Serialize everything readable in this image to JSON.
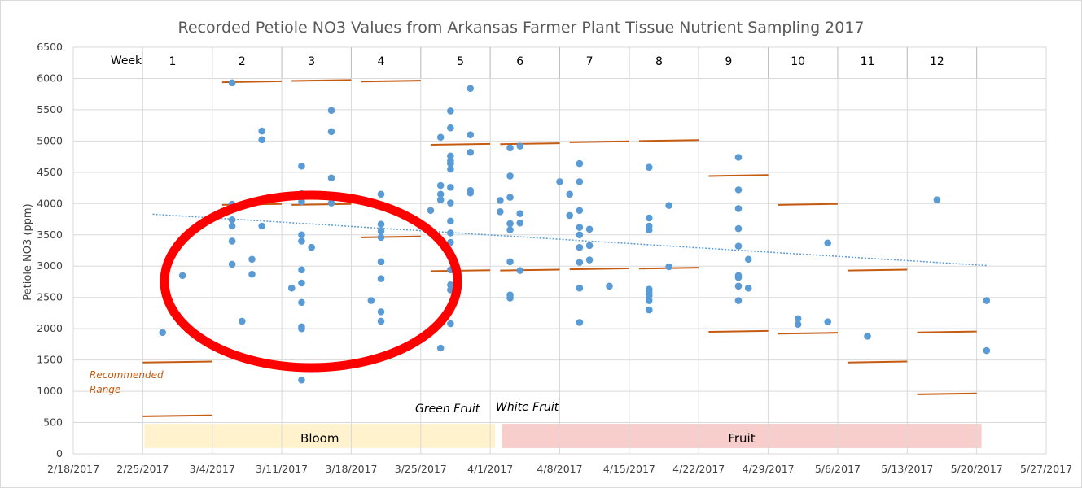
{
  "chart_data": {
    "type": "scatter",
    "title": "Recorded  Petiole NO3 Values from Arkansas Farmer Plant Tissue Nutrient Sampling 2017",
    "ylabel": "Petiole NO3  (ppm)",
    "xlabel": "",
    "ylim": [
      0,
      6500
    ],
    "xlim": [
      "2/18/2017",
      "5/27/2017"
    ],
    "y_ticks": [
      0,
      500,
      1000,
      1500,
      2000,
      2500,
      3000,
      3500,
      4000,
      4500,
      5000,
      5500,
      6000,
      6500
    ],
    "x_ticks": [
      "2/18/2017",
      "2/25/2017",
      "3/4/2017",
      "3/11/2017",
      "3/18/2017",
      "3/25/2017",
      "4/1/2017",
      "4/8/2017",
      "4/15/2017",
      "4/22/2017",
      "4/29/2017",
      "5/6/2017",
      "5/13/2017",
      "5/20/2017",
      "5/27/2017"
    ],
    "grid": true,
    "legend": "none",
    "week_header": "Week",
    "weeks": [
      {
        "label": "1",
        "x": "2/28/2017"
      },
      {
        "label": "2",
        "x": "3/7/2017"
      },
      {
        "label": "3",
        "x": "3/14/2017"
      },
      {
        "label": "4",
        "x": "3/21/2017"
      },
      {
        "label": "5",
        "x": "3/29/2017"
      },
      {
        "label": "6",
        "x": "4/4/2017"
      },
      {
        "label": "7",
        "x": "4/11/2017"
      },
      {
        "label": "8",
        "x": "4/18/2017"
      },
      {
        "label": "9",
        "x": "4/25/2017"
      },
      {
        "label": "10",
        "x": "5/2/2017"
      },
      {
        "label": "11",
        "x": "5/9/2017"
      },
      {
        "label": "12",
        "x": "5/16/2017"
      }
    ],
    "week_dividers": [
      "3/4/2017",
      "3/11/2017",
      "3/18/2017",
      "3/25/2017",
      "4/1/2017",
      "4/8/2017",
      "4/15/2017",
      "4/22/2017",
      "4/29/2017",
      "5/6/2017",
      "5/13/2017",
      "5/20/2017"
    ],
    "series": [
      {
        "points": [
          [
            "2/27/2017",
            1940
          ],
          [
            "3/1/2017",
            2850
          ],
          [
            "3/6/2017",
            5930
          ],
          [
            "3/6/2017",
            3990
          ],
          [
            "3/6/2017",
            3740
          ],
          [
            "3/6/2017",
            3640
          ],
          [
            "3/6/2017",
            3400
          ],
          [
            "3/6/2017",
            3030
          ],
          [
            "3/7/2017",
            2120
          ],
          [
            "3/8/2017",
            3110
          ],
          [
            "3/8/2017",
            2870
          ],
          [
            "3/9/2017",
            5160
          ],
          [
            "3/9/2017",
            5020
          ],
          [
            "3/9/2017",
            3640
          ],
          [
            "3/12/2017",
            2650
          ],
          [
            "3/13/2017",
            4600
          ],
          [
            "3/13/2017",
            4160
          ],
          [
            "3/13/2017",
            4030
          ],
          [
            "3/13/2017",
            3500
          ],
          [
            "3/13/2017",
            3400
          ],
          [
            "3/13/2017",
            2940
          ],
          [
            "3/13/2017",
            2730
          ],
          [
            "3/13/2017",
            2420
          ],
          [
            "3/13/2017",
            2030
          ],
          [
            "3/13/2017",
            2000
          ],
          [
            "3/13/2017",
            1180
          ],
          [
            "3/14/2017",
            3300
          ],
          [
            "3/16/2017",
            5490
          ],
          [
            "3/16/2017",
            5150
          ],
          [
            "3/16/2017",
            4410
          ],
          [
            "3/16/2017",
            4010
          ],
          [
            "3/20/2017",
            2450
          ],
          [
            "3/21/2017",
            4150
          ],
          [
            "3/21/2017",
            3670
          ],
          [
            "3/21/2017",
            3560
          ],
          [
            "3/21/2017",
            3460
          ],
          [
            "3/21/2017",
            3070
          ],
          [
            "3/21/2017",
            2800
          ],
          [
            "3/21/2017",
            2270
          ],
          [
            "3/21/2017",
            2120
          ],
          [
            "3/26/2017",
            3890
          ],
          [
            "3/27/2017",
            5060
          ],
          [
            "3/27/2017",
            4290
          ],
          [
            "3/27/2017",
            4150
          ],
          [
            "3/27/2017",
            4060
          ],
          [
            "3/27/2017",
            1690
          ],
          [
            "3/28/2017",
            5480
          ],
          [
            "3/28/2017",
            5210
          ],
          [
            "3/28/2017",
            4760
          ],
          [
            "3/28/2017",
            4680
          ],
          [
            "3/28/2017",
            4640
          ],
          [
            "3/28/2017",
            4550
          ],
          [
            "3/28/2017",
            4260
          ],
          [
            "3/28/2017",
            4010
          ],
          [
            "3/28/2017",
            3720
          ],
          [
            "3/28/2017",
            3530
          ],
          [
            "3/28/2017",
            3380
          ],
          [
            "3/28/2017",
            2940
          ],
          [
            "3/28/2017",
            2700
          ],
          [
            "3/28/2017",
            2620
          ],
          [
            "3/28/2017",
            2080
          ],
          [
            "3/30/2017",
            5840
          ],
          [
            "3/30/2017",
            5100
          ],
          [
            "3/30/2017",
            4820
          ],
          [
            "3/30/2017",
            4210
          ],
          [
            "3/30/2017",
            4170
          ],
          [
            "4/2/2017",
            4050
          ],
          [
            "4/2/2017",
            3870
          ],
          [
            "4/3/2017",
            4890
          ],
          [
            "4/3/2017",
            4440
          ],
          [
            "4/3/2017",
            4100
          ],
          [
            "4/3/2017",
            3680
          ],
          [
            "4/3/2017",
            3580
          ],
          [
            "4/3/2017",
            3070
          ],
          [
            "4/3/2017",
            2540
          ],
          [
            "4/3/2017",
            2490
          ],
          [
            "4/4/2017",
            4920
          ],
          [
            "4/4/2017",
            3840
          ],
          [
            "4/4/2017",
            3690
          ],
          [
            "4/4/2017",
            2930
          ],
          [
            "4/8/2017",
            4350
          ],
          [
            "4/9/2017",
            4150
          ],
          [
            "4/9/2017",
            3810
          ],
          [
            "4/10/2017",
            4640
          ],
          [
            "4/10/2017",
            4350
          ],
          [
            "4/10/2017",
            3890
          ],
          [
            "4/10/2017",
            3620
          ],
          [
            "4/10/2017",
            3500
          ],
          [
            "4/10/2017",
            3300
          ],
          [
            "4/10/2017",
            3060
          ],
          [
            "4/10/2017",
            2650
          ],
          [
            "4/10/2017",
            2100
          ],
          [
            "4/11/2017",
            3590
          ],
          [
            "4/11/2017",
            3330
          ],
          [
            "4/11/2017",
            3100
          ],
          [
            "4/13/2017",
            2680
          ],
          [
            "4/17/2017",
            4580
          ],
          [
            "4/17/2017",
            3770
          ],
          [
            "4/17/2017",
            3640
          ],
          [
            "4/17/2017",
            3580
          ],
          [
            "4/17/2017",
            2630
          ],
          [
            "4/17/2017",
            2580
          ],
          [
            "4/17/2017",
            2530
          ],
          [
            "4/17/2017",
            2450
          ],
          [
            "4/17/2017",
            2300
          ],
          [
            "4/19/2017",
            3970
          ],
          [
            "4/19/2017",
            2990
          ],
          [
            "4/26/2017",
            4740
          ],
          [
            "4/26/2017",
            4220
          ],
          [
            "4/26/2017",
            3920
          ],
          [
            "4/26/2017",
            3600
          ],
          [
            "4/26/2017",
            3320
          ],
          [
            "4/26/2017",
            2850
          ],
          [
            "4/26/2017",
            2820
          ],
          [
            "4/26/2017",
            2680
          ],
          [
            "4/26/2017",
            2450
          ],
          [
            "4/27/2017",
            3110
          ],
          [
            "4/27/2017",
            2650
          ],
          [
            "5/2/2017",
            2160
          ],
          [
            "5/2/2017",
            2070
          ],
          [
            "5/5/2017",
            3370
          ],
          [
            "5/5/2017",
            2110
          ],
          [
            "5/9/2017",
            1880
          ],
          [
            "5/16/2017",
            4060
          ],
          [
            "5/21/2017",
            2450
          ],
          [
            "5/21/2017",
            1650
          ]
        ]
      }
    ],
    "trendline": {
      "from": [
        "2/26/2017",
        3830
      ],
      "to": [
        "5/21/2017",
        3010
      ]
    },
    "range_segments": [
      {
        "from": "2/25/2017",
        "to": "3/4/2017",
        "low": 600,
        "high": 1460
      },
      {
        "from": "3/5/2017",
        "to": "3/11/2017",
        "low": 3980,
        "high": 5940
      },
      {
        "from": "3/12/2017",
        "to": "3/18/2017",
        "low": 3980,
        "high": 5960
      },
      {
        "from": "3/19/2017",
        "to": "3/25/2017",
        "low": 3460,
        "high": 5950
      },
      {
        "from": "3/26/2017",
        "to": "4/1/2017",
        "low": 2920,
        "high": 4940
      },
      {
        "from": "4/2/2017",
        "to": "4/8/2017",
        "low": 2930,
        "high": 4950
      },
      {
        "from": "4/9/2017",
        "to": "4/15/2017",
        "low": 2950,
        "high": 4980
      },
      {
        "from": "4/16/2017",
        "to": "4/22/2017",
        "low": 2960,
        "high": 5000
      },
      {
        "from": "4/23/2017",
        "to": "4/29/2017",
        "low": 1950,
        "high": 4440
      },
      {
        "from": "4/30/2017",
        "to": "5/6/2017",
        "low": 1920,
        "high": 3980
      },
      {
        "from": "5/7/2017",
        "to": "5/13/2017",
        "low": 1460,
        "high": 2930
      },
      {
        "from": "5/14/2017",
        "to": "5/20/2017",
        "low": 950,
        "high": 1940
      }
    ],
    "annotations": {
      "recommended_line1": "Recommended",
      "recommended_line2": "Range",
      "green_fruit": "Green Fruit",
      "white_fruit": "White Fruit"
    },
    "bands": [
      {
        "label": "Bloom",
        "from": "2/25/2017",
        "to": "4/1/2017",
        "color": "#fff2cc"
      },
      {
        "label": "Fruit",
        "from": "4/2/2017",
        "to": "5/20/2017",
        "color": "#f8cecc"
      }
    ],
    "colors": {
      "points": "#5b9bd5",
      "range": "#c55a11",
      "trend": "#5b9bd5",
      "circle": "#ff0000",
      "grid": "#d9d9d9"
    }
  }
}
